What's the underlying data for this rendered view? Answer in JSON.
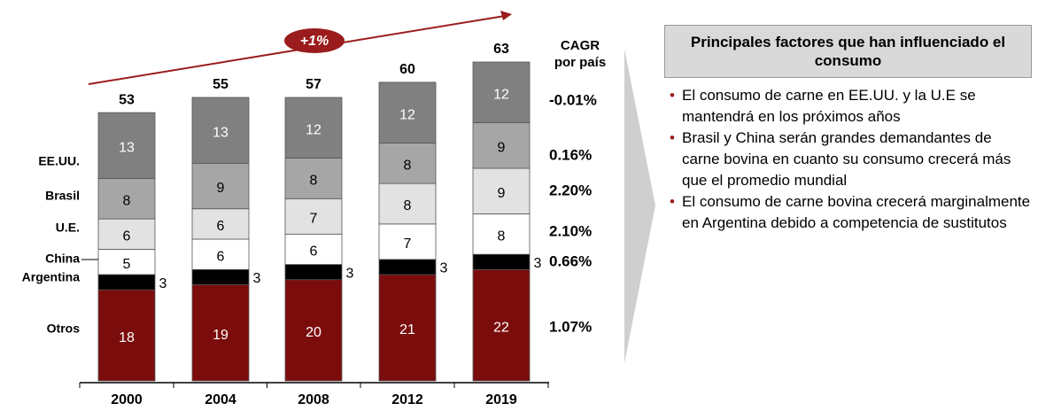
{
  "chart_data": {
    "type": "stacked-bar",
    "annotation": "+1%",
    "cagr_header": [
      "CAGR",
      "por país"
    ],
    "categories": [
      "2000",
      "2004",
      "2008",
      "2012",
      "2019"
    ],
    "totals": [
      "53",
      "55",
      "57",
      "60",
      "63"
    ],
    "series": [
      {
        "name": "Otros",
        "color": "#7b0c0c",
        "text_color": "#ffffff",
        "values": [
          18,
          19,
          20,
          21,
          22
        ],
        "cagr": "1.07%"
      },
      {
        "name": "Argentina",
        "color": "#000000",
        "text_color": "#000000",
        "values": [
          3,
          3,
          3,
          3,
          3
        ],
        "cagr": "0.66%"
      },
      {
        "name": "China",
        "color": "#ffffff",
        "text_color": "#000000",
        "values": [
          5,
          6,
          6,
          7,
          8
        ],
        "cagr": "2.10%"
      },
      {
        "name": "U.E.",
        "color": "#e2e2e2",
        "text_color": "#000000",
        "values": [
          6,
          6,
          7,
          8,
          9
        ],
        "cagr": "2.20%"
      },
      {
        "name": "Brasil",
        "color": "#a6a6a6",
        "text_color": "#000000",
        "values": [
          8,
          9,
          8,
          8,
          9
        ],
        "cagr": "0.16%"
      },
      {
        "name": "EE.UU.",
        "color": "#808080",
        "text_color": "#ffffff",
        "values": [
          13,
          13,
          12,
          12,
          12
        ],
        "cagr": "-0.01%"
      }
    ]
  },
  "panel": {
    "title": "Principales factores que han influenciado el consumo",
    "bullets": [
      "El consumo de carne en EE.UU. y la U.E  se mantendrá en los próximos años",
      "Brasil y China serán grandes demandantes de carne bovina en cuanto su consumo crecerá más que el promedio mundial",
      "El consumo de carne bovina crecerá marginalmente en Argentina debido a competencia de sustitutos"
    ]
  }
}
